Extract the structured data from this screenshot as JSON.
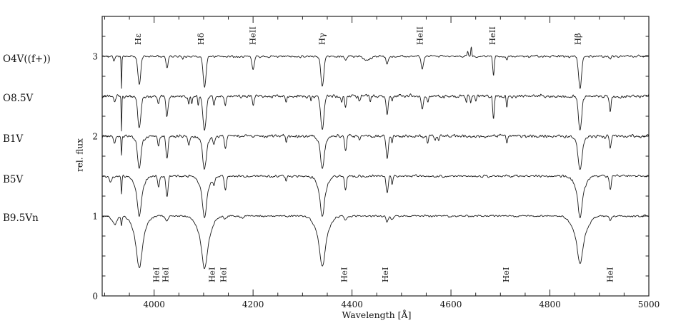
{
  "figure": {
    "background": "#ffffff",
    "line_color": "#1a1a1a",
    "frame_color": "#222222"
  },
  "chart_data": {
    "type": "line",
    "title": "",
    "xlabel": "Wavelength [Å]",
    "ylabel": "rel. flux",
    "xlim": [
      3895,
      5000
    ],
    "ylim": [
      0,
      3.5
    ],
    "x_major_ticks": [
      4000,
      4200,
      4400,
      4600,
      4800,
      5000
    ],
    "x_minor_step": 50,
    "y_major_ticks": [
      0,
      1,
      2,
      3
    ],
    "y_minor_step": 0.25,
    "grid": false,
    "legend_position": "outside-left",
    "line_format": "each line entry = [wavelength_A, depth_rel_flux (negative = emission), sigma_A]",
    "series": [
      {
        "name": "O4V((f+))",
        "continuum": 3.0,
        "noise_amp": 0.009,
        "lines": [
          [
            3919,
            0.06,
            1.5
          ],
          [
            3934,
            0.4,
            0.7
          ],
          [
            3970,
            0.36,
            2.8
          ],
          [
            4026,
            0.14,
            2.0
          ],
          [
            4058,
            0.04,
            1.5
          ],
          [
            4102,
            0.38,
            3.0
          ],
          [
            4200,
            0.17,
            2.2
          ],
          [
            4340,
            0.37,
            3.0
          ],
          [
            4387,
            0.05,
            2.0
          ],
          [
            4430,
            0.05,
            7.0
          ],
          [
            4471,
            0.1,
            2.2
          ],
          [
            4542,
            0.17,
            2.2
          ],
          [
            4634,
            -0.07,
            1.0
          ],
          [
            4641,
            -0.12,
            1.0
          ],
          [
            4686,
            0.24,
            1.6
          ],
          [
            4713,
            0.05,
            1.5
          ],
          [
            4861,
            0.4,
            3.0
          ],
          [
            4922,
            0.04,
            1.8
          ]
        ]
      },
      {
        "name": "O8.5V",
        "continuum": 2.5,
        "noise_amp": 0.014,
        "lines": [
          [
            3920,
            0.09,
            1.8
          ],
          [
            3934,
            0.44,
            0.7
          ],
          [
            3970,
            0.4,
            3.2
          ],
          [
            4009,
            0.09,
            1.8
          ],
          [
            4026,
            0.25,
            2.2
          ],
          [
            4070,
            0.11,
            1.4
          ],
          [
            4076,
            0.09,
            1.4
          ],
          [
            4089,
            0.11,
            1.2
          ],
          [
            4102,
            0.42,
            3.2
          ],
          [
            4121,
            0.1,
            1.6
          ],
          [
            4144,
            0.13,
            1.6
          ],
          [
            4200,
            0.12,
            1.8
          ],
          [
            4267,
            0.07,
            1.2
          ],
          [
            4317,
            0.05,
            1.3
          ],
          [
            4340,
            0.41,
            3.2
          ],
          [
            4379,
            0.08,
            1.4
          ],
          [
            4387,
            0.14,
            1.6
          ],
          [
            4415,
            0.07,
            1.6
          ],
          [
            4437,
            0.05,
            1.4
          ],
          [
            4471,
            0.22,
            2.0
          ],
          [
            4481,
            0.06,
            1.2
          ],
          [
            4542,
            0.15,
            2.0
          ],
          [
            4553,
            0.07,
            1.4
          ],
          [
            4631,
            0.08,
            1.2
          ],
          [
            4640,
            0.09,
            1.2
          ],
          [
            4650,
            0.08,
            1.2
          ],
          [
            4686,
            0.28,
            1.6
          ],
          [
            4713,
            0.14,
            1.4
          ],
          [
            4861,
            0.44,
            3.2
          ],
          [
            4922,
            0.18,
            1.7
          ]
        ]
      },
      {
        "name": "B1V",
        "continuum": 2.0,
        "noise_amp": 0.013,
        "lines": [
          [
            3920,
            0.08,
            2.0
          ],
          [
            3934,
            0.23,
            0.8
          ],
          [
            3970,
            0.3,
            3.2
          ],
          [
            3970,
            0.1,
            7.0
          ],
          [
            4009,
            0.12,
            1.8
          ],
          [
            4026,
            0.27,
            2.2
          ],
          [
            4070,
            0.1,
            1.8
          ],
          [
            4102,
            0.31,
            3.4
          ],
          [
            4102,
            0.1,
            7.5
          ],
          [
            4121,
            0.1,
            1.7
          ],
          [
            4144,
            0.15,
            1.8
          ],
          [
            4267,
            0.06,
            1.2
          ],
          [
            4340,
            0.3,
            3.4
          ],
          [
            4340,
            0.1,
            7.5
          ],
          [
            4387,
            0.19,
            1.8
          ],
          [
            4415,
            0.05,
            1.6
          ],
          [
            4471,
            0.27,
            2.2
          ],
          [
            4481,
            0.08,
            1.2
          ],
          [
            4553,
            0.09,
            1.4
          ],
          [
            4568,
            0.06,
            1.4
          ],
          [
            4575,
            0.05,
            1.4
          ],
          [
            4713,
            0.08,
            1.4
          ],
          [
            4861,
            0.33,
            3.4
          ],
          [
            4861,
            0.1,
            8.0
          ],
          [
            4922,
            0.15,
            1.8
          ]
        ]
      },
      {
        "name": "B5V",
        "continuum": 1.5,
        "noise_amp": 0.01,
        "lines": [
          [
            3912,
            0.08,
            2.5
          ],
          [
            3934,
            0.22,
            0.9
          ],
          [
            3970,
            0.27,
            3.4
          ],
          [
            3970,
            0.22,
            8.5
          ],
          [
            4009,
            0.14,
            1.9
          ],
          [
            4026,
            0.26,
            2.1
          ],
          [
            4102,
            0.28,
            3.4
          ],
          [
            4102,
            0.23,
            9.0
          ],
          [
            4121,
            0.09,
            1.7
          ],
          [
            4144,
            0.17,
            1.9
          ],
          [
            4267,
            0.05,
            1.2
          ],
          [
            4340,
            0.28,
            3.4
          ],
          [
            4340,
            0.23,
            9.0
          ],
          [
            4387,
            0.17,
            1.9
          ],
          [
            4471,
            0.21,
            2.1
          ],
          [
            4481,
            0.1,
            1.3
          ],
          [
            4861,
            0.29,
            3.4
          ],
          [
            4861,
            0.24,
            9.5
          ],
          [
            4922,
            0.17,
            1.9
          ]
        ]
      },
      {
        "name": "B9.5Vn",
        "continuum": 1.0,
        "noise_amp": 0.008,
        "lines": [
          [
            3920,
            0.1,
            5.0
          ],
          [
            3934,
            0.12,
            1.1
          ],
          [
            3970,
            0.32,
            4.5
          ],
          [
            3970,
            0.33,
            11.0
          ],
          [
            4026,
            0.06,
            2.8
          ],
          [
            4102,
            0.32,
            4.5
          ],
          [
            4102,
            0.34,
            12.0
          ],
          [
            4144,
            0.04,
            3.0
          ],
          [
            4179,
            0.03,
            3.0
          ],
          [
            4340,
            0.31,
            4.5
          ],
          [
            4340,
            0.32,
            12.0
          ],
          [
            4387,
            0.04,
            3.0
          ],
          [
            4471,
            0.07,
            2.5
          ],
          [
            4481,
            0.05,
            2.0
          ],
          [
            4861,
            0.3,
            4.5
          ],
          [
            4861,
            0.3,
            13.0
          ],
          [
            4922,
            0.05,
            2.5
          ]
        ]
      }
    ],
    "top_annotations": [
      {
        "label": "Hε",
        "wavelength": 3967
      },
      {
        "label": "Hδ",
        "wavelength": 4094
      },
      {
        "label": "HeII",
        "wavelength": 4199
      },
      {
        "label": "Hγ",
        "wavelength": 4339
      },
      {
        "label": "HeII",
        "wavelength": 4537
      },
      {
        "label": "HeII",
        "wavelength": 4684
      },
      {
        "label": "Hβ",
        "wavelength": 4856
      }
    ],
    "bottom_annotations": [
      {
        "label": "HeI",
        "wavelength": 4004
      },
      {
        "label": "HeI",
        "wavelength": 4023
      },
      {
        "label": "HeI",
        "wavelength": 4117
      },
      {
        "label": "HeI",
        "wavelength": 4140
      },
      {
        "label": "HeI",
        "wavelength": 4384
      },
      {
        "label": "HeI",
        "wavelength": 4467
      },
      {
        "label": "HeI",
        "wavelength": 4711
      },
      {
        "label": "HeI",
        "wavelength": 4921
      }
    ]
  }
}
